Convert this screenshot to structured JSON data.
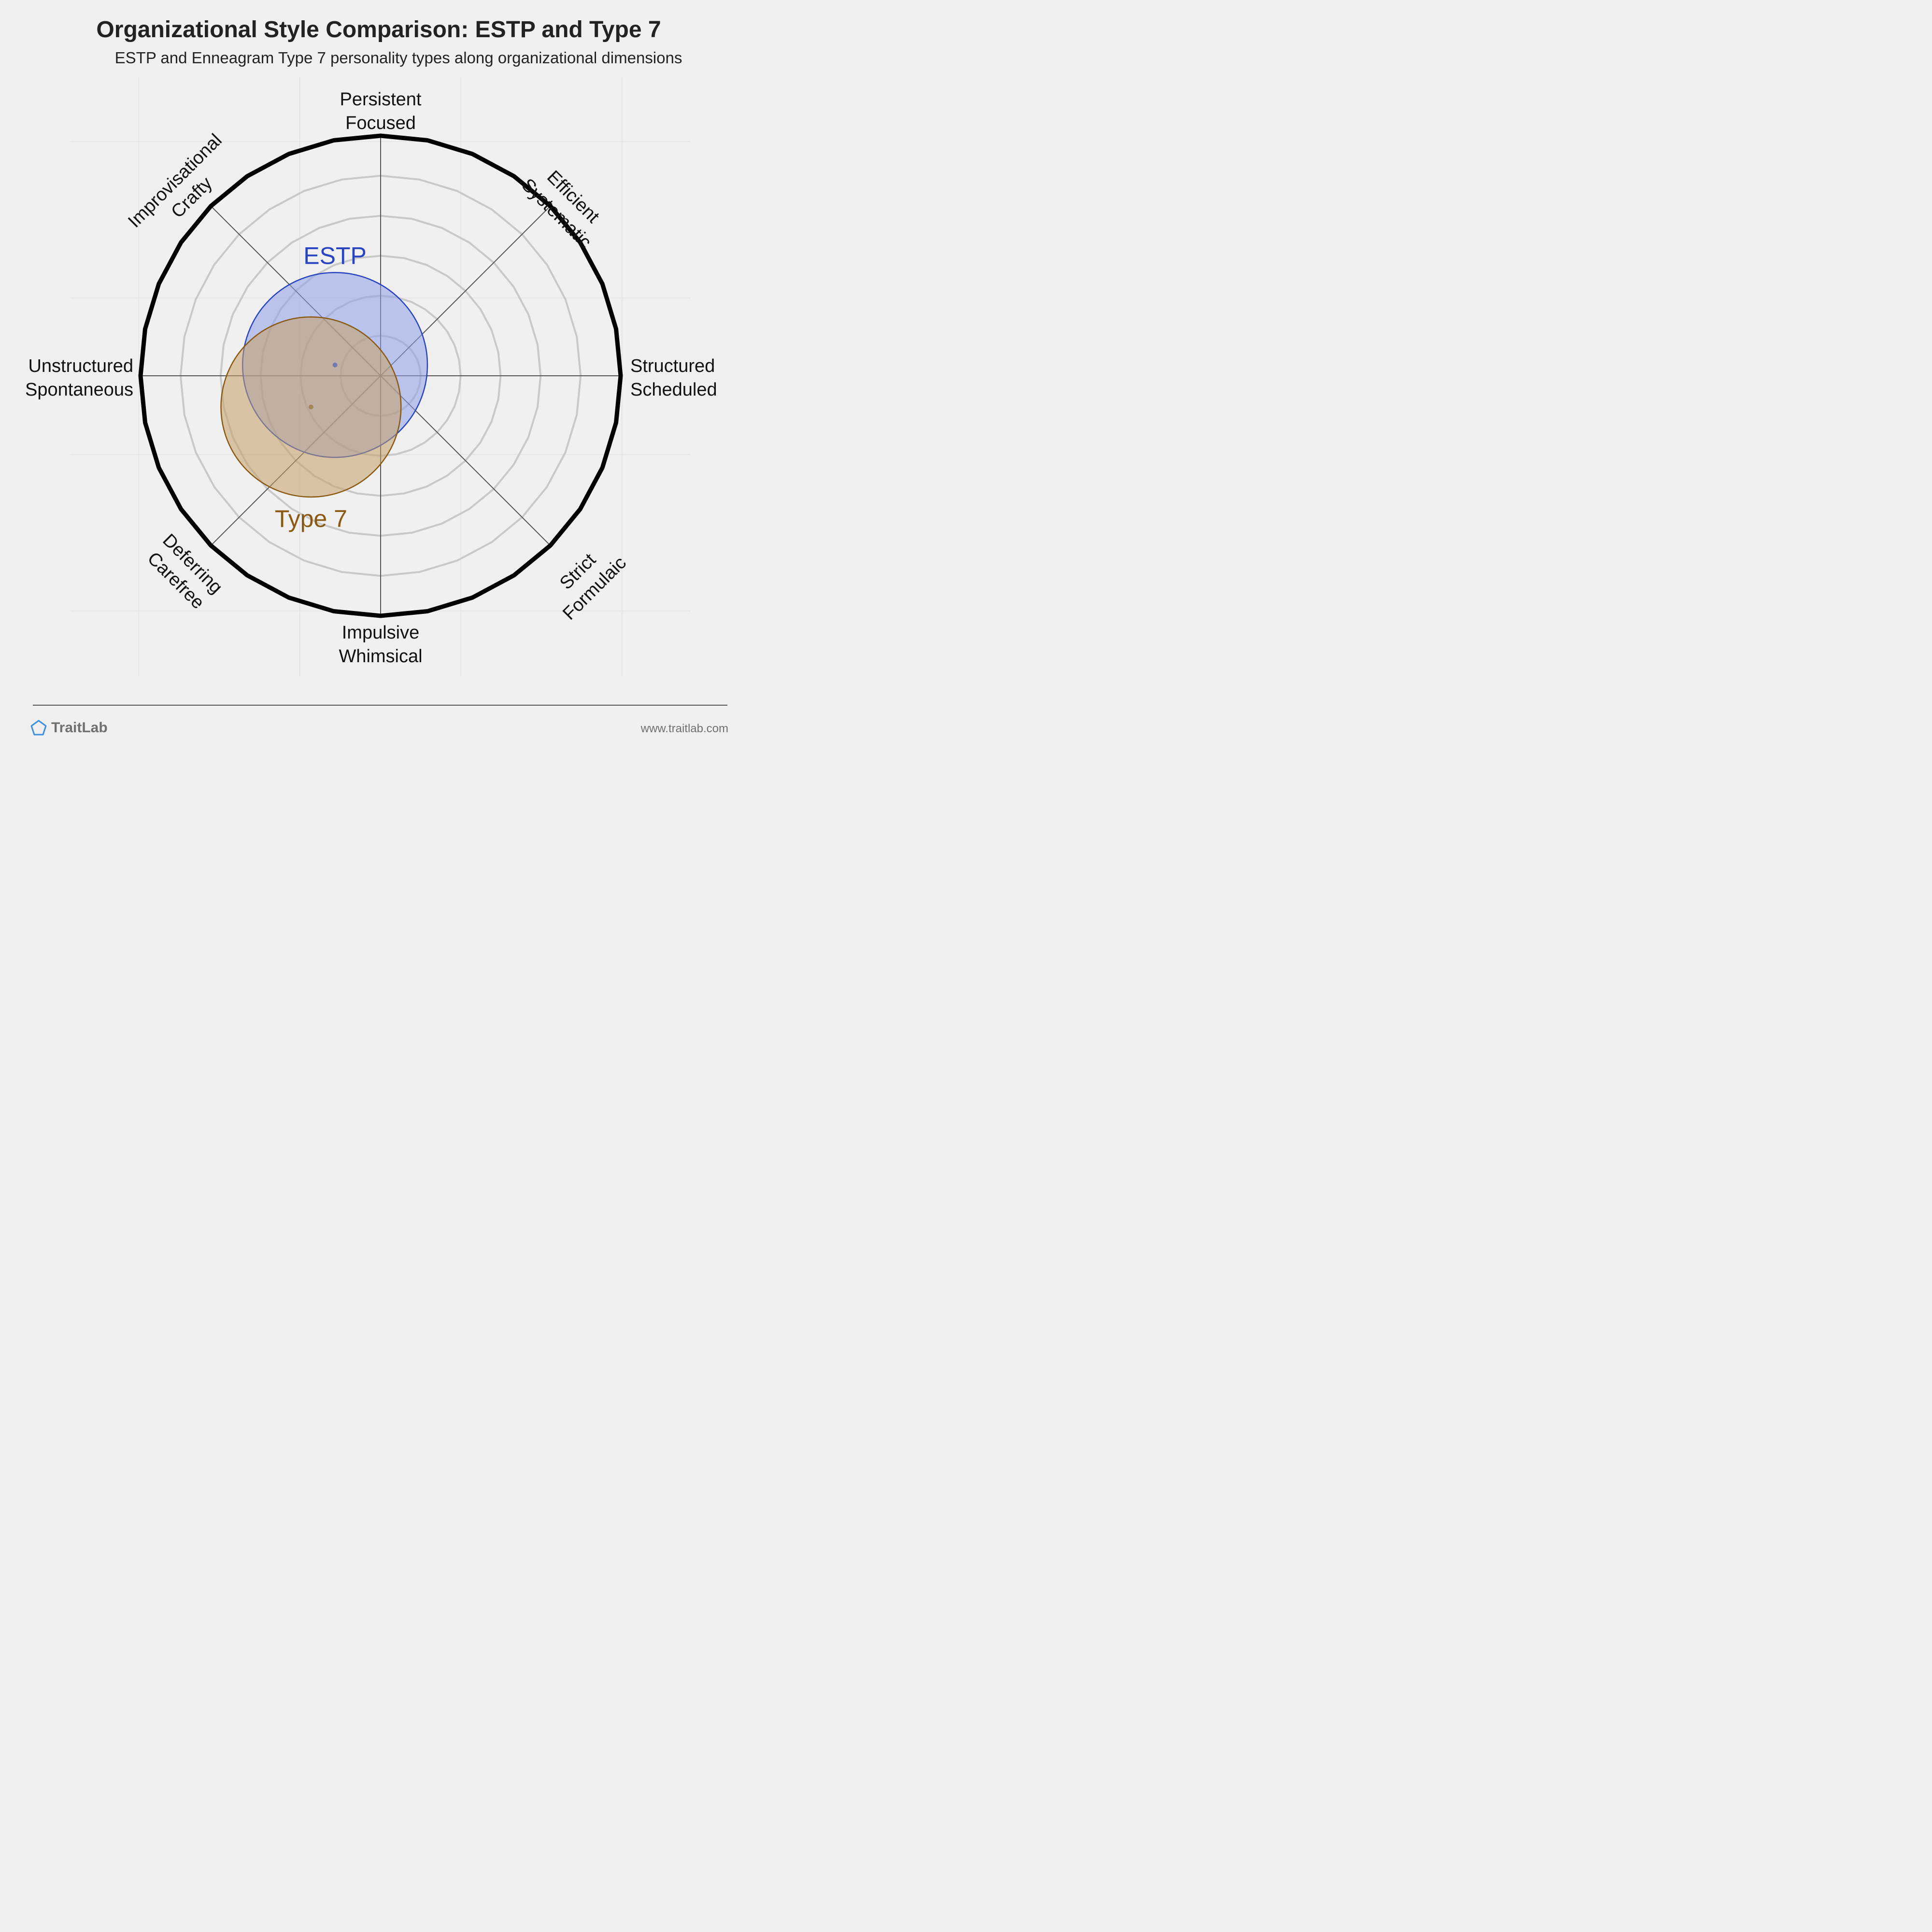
{
  "title": "Organizational Style Comparison: ESTP and Type 7",
  "subtitle": "ESTP and Enneagram Type 7 personality types along organizational dimensions",
  "chart_data": {
    "type": "scatter",
    "subtype": "radial-compass",
    "axes": [
      {
        "name": "top",
        "lines": [
          "Persistent",
          "Focused"
        ]
      },
      {
        "name": "top-right",
        "lines": [
          "Efficient",
          "Systematic"
        ]
      },
      {
        "name": "right",
        "lines": [
          "Structured",
          "Scheduled"
        ]
      },
      {
        "name": "bottom-right",
        "lines": [
          "Strict",
          "Formulaic"
        ]
      },
      {
        "name": "bottom",
        "lines": [
          "Impulsive",
          "Whimsical"
        ]
      },
      {
        "name": "bottom-left",
        "lines": [
          "Deferring",
          "Carefree"
        ]
      },
      {
        "name": "left",
        "lines": [
          "Unstructured",
          "Spontaneous"
        ]
      },
      {
        "name": "top-left",
        "lines": [
          "Improvisational",
          "Crafty"
        ]
      }
    ],
    "xlim": [
      -1,
      1
    ],
    "ylim": [
      -1,
      1
    ],
    "ring_count": 6,
    "series": [
      {
        "name": "ESTP",
        "x": -0.19,
        "y": 0.045,
        "spread": 0.385,
        "color": "#2944c0",
        "fill": "#8c9ee8"
      },
      {
        "name": "Type 7",
        "x": -0.29,
        "y": -0.13,
        "spread": 0.375,
        "color": "#8a5a14",
        "fill": "#c4a067"
      }
    ]
  },
  "footer": {
    "brand": "TraitLab",
    "url": "www.traitlab.com",
    "brand_icon": "pentagon-icon",
    "brand_color": "#3b8fe0"
  }
}
